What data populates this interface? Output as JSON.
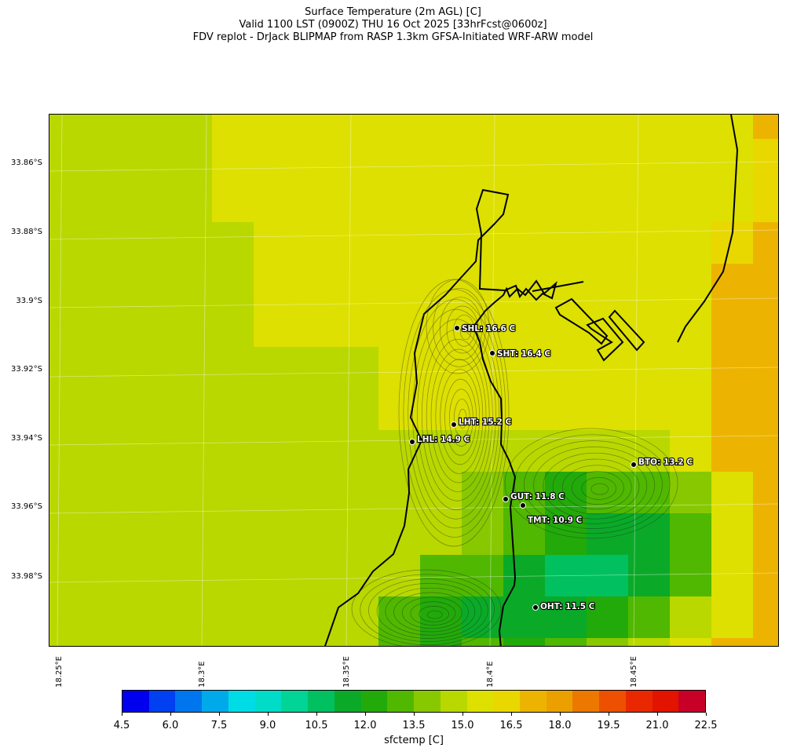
{
  "title": {
    "line1": "Surface Temperature (2m AGL) [C]",
    "line2": "Valid 1100 LST (0900Z) THU 16 Oct 2025 [33hrFcst@0600z]",
    "line3": "FDV replot - DrJack BLIPMAP from RASP 1.3km GFSA-Initiated WRF-ARW model"
  },
  "map": {
    "lat_ticks": [
      "33.86°S",
      "33.88°S",
      "33.9°S",
      "33.92°S",
      "33.94°S",
      "33.96°S",
      "33.98°S"
    ],
    "lon_ticks": [
      "18.25°E",
      "18.3°E",
      "18.35°E",
      "18.4°E",
      "18.45°E"
    ],
    "stations": [
      {
        "label": "SHL: 16.6 C",
        "value": 16.6
      },
      {
        "label": "SHT: 16.4 C",
        "value": 16.4
      },
      {
        "label": "LHT: 15.2 C",
        "value": 15.2
      },
      {
        "label": "LHL: 14.9 C",
        "value": 14.9
      },
      {
        "label": "BTO: 13.2 C",
        "value": 13.2
      },
      {
        "label": "GUT: 11.8 C",
        "value": 11.8
      },
      {
        "label": "TMT: 10.9 C",
        "value": 10.9
      },
      {
        "label": "OHT: 11.5 C",
        "value": 11.5
      }
    ],
    "fill_color": "#dde000"
  },
  "colorbar": {
    "label": "sfctemp [C]",
    "ticks": [
      "4.5",
      "6.0",
      "7.5",
      "9.0",
      "10.5",
      "12.0",
      "13.5",
      "15.0",
      "16.5",
      "18.0",
      "19.5",
      "21.0",
      "22.5"
    ],
    "colors": [
      "#0000ee",
      "#0040f0",
      "#0076ee",
      "#00aaea",
      "#00dce6",
      "#00dcc8",
      "#00d496",
      "#00c060",
      "#0aaa28",
      "#22aa0a",
      "#50b800",
      "#88c800",
      "#b8d800",
      "#dde000",
      "#e8d800",
      "#ecb400",
      "#eca000",
      "#ec7800",
      "#ec5000",
      "#ea2800",
      "#e21400",
      "#c80028"
    ]
  }
}
